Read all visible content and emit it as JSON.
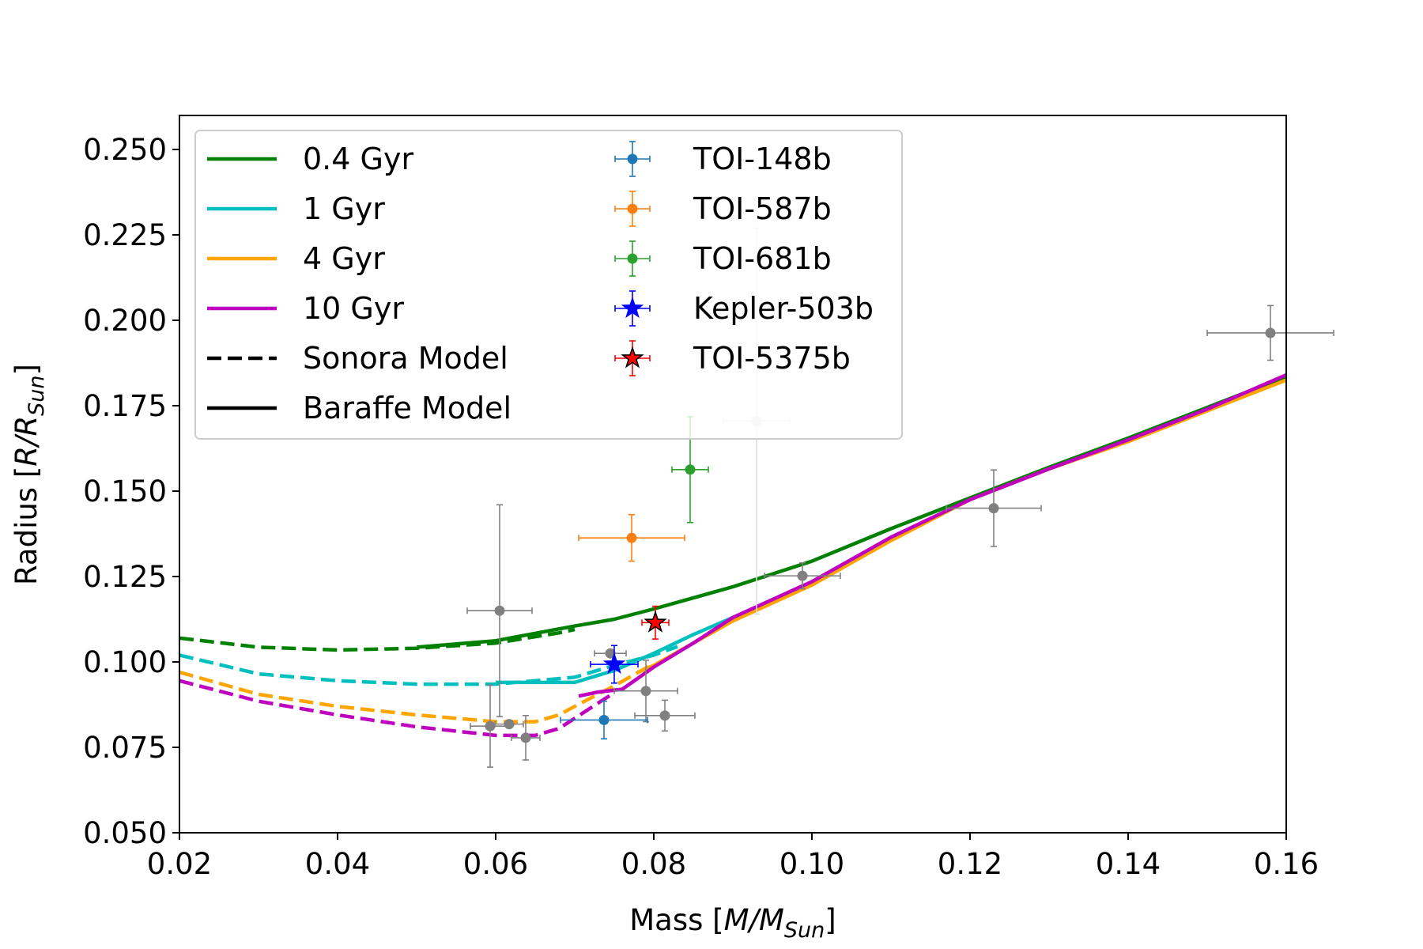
{
  "chart_data": {
    "type": "scatter",
    "title": "",
    "xlabel": {
      "pre": "Mass [",
      "var": "M/M",
      "sub": "Sun",
      "post": "]"
    },
    "ylabel": {
      "pre": "Radius [",
      "var": "R/R",
      "sub": "Sun",
      "post": "]"
    },
    "xlim": [
      0.02,
      0.16
    ],
    "ylim": [
      0.05,
      0.26
    ],
    "xticks": [
      0.02,
      0.04,
      0.06,
      0.08,
      0.1,
      0.12,
      0.14,
      0.16
    ],
    "xtick_labels": [
      "0.02",
      "0.04",
      "0.06",
      "0.08",
      "0.10",
      "0.12",
      "0.14",
      "0.16"
    ],
    "yticks": [
      0.05,
      0.075,
      0.1,
      0.125,
      0.15,
      0.175,
      0.2,
      0.225,
      0.25
    ],
    "ytick_labels": [
      "0.050",
      "0.075",
      "0.100",
      "0.125",
      "0.150",
      "0.175",
      "0.200",
      "0.225",
      "0.250"
    ],
    "grid": false,
    "legend_position": "upper-left",
    "series": [
      {
        "name": "0.4 Gyr",
        "color": "#008000",
        "model": "Sonora",
        "points": [
          [
            0.02,
            0.107
          ],
          [
            0.03,
            0.1043
          ],
          [
            0.04,
            0.1035
          ],
          [
            0.05,
            0.104
          ],
          [
            0.06,
            0.1055
          ],
          [
            0.068,
            0.1085
          ],
          [
            0.07,
            0.1095
          ]
        ]
      },
      {
        "name": "0.4 Gyr",
        "color": "#008000",
        "model": "Baraffe",
        "points": [
          [
            0.05,
            0.1043
          ],
          [
            0.06,
            0.1062
          ],
          [
            0.07,
            0.1105
          ],
          [
            0.075,
            0.1125
          ],
          [
            0.08,
            0.1155
          ],
          [
            0.09,
            0.122
          ],
          [
            0.1,
            0.1295
          ],
          [
            0.11,
            0.139
          ],
          [
            0.12,
            0.148
          ],
          [
            0.13,
            0.157
          ],
          [
            0.14,
            0.1655
          ],
          [
            0.15,
            0.1745
          ],
          [
            0.16,
            0.1835
          ]
        ]
      },
      {
        "name": "1 Gyr",
        "color": "#00BFBF",
        "model": "Sonora",
        "points": [
          [
            0.02,
            0.102
          ],
          [
            0.03,
            0.0965
          ],
          [
            0.04,
            0.0945
          ],
          [
            0.05,
            0.0935
          ],
          [
            0.06,
            0.0935
          ],
          [
            0.07,
            0.0955
          ],
          [
            0.075,
            0.099
          ],
          [
            0.08,
            0.102
          ],
          [
            0.083,
            0.1045
          ]
        ]
      },
      {
        "name": "1 Gyr",
        "color": "#00BFBF",
        "model": "Baraffe",
        "points": [
          [
            0.06,
            0.094
          ],
          [
            0.065,
            0.094
          ],
          [
            0.07,
            0.094
          ],
          [
            0.075,
            0.0975
          ],
          [
            0.08,
            0.1025
          ],
          [
            0.085,
            0.108
          ],
          [
            0.09,
            0.113
          ]
        ]
      },
      {
        "name": "4 Gyr",
        "color": "#FFA500",
        "model": "Sonora",
        "points": [
          [
            0.02,
            0.097
          ],
          [
            0.03,
            0.0905
          ],
          [
            0.04,
            0.087
          ],
          [
            0.05,
            0.0845
          ],
          [
            0.06,
            0.0825
          ],
          [
            0.065,
            0.0825
          ],
          [
            0.068,
            0.0845
          ],
          [
            0.07,
            0.087
          ],
          [
            0.075,
            0.093
          ],
          [
            0.08,
            0.0995
          ]
        ]
      },
      {
        "name": "4 Gyr",
        "color": "#FFA500",
        "model": "Baraffe",
        "points": [
          [
            0.078,
            0.097
          ],
          [
            0.08,
            0.099
          ],
          [
            0.09,
            0.112
          ],
          [
            0.1,
            0.1225
          ],
          [
            0.11,
            0.1355
          ],
          [
            0.12,
            0.1475
          ],
          [
            0.13,
            0.1565
          ],
          [
            0.14,
            0.1645
          ],
          [
            0.15,
            0.1735
          ],
          [
            0.16,
            0.1825
          ]
        ]
      },
      {
        "name": "10 Gyr",
        "color": "#BF00BF",
        "model": "Sonora",
        "points": [
          [
            0.02,
            0.0945
          ],
          [
            0.03,
            0.0885
          ],
          [
            0.04,
            0.0845
          ],
          [
            0.05,
            0.081
          ],
          [
            0.06,
            0.0785
          ],
          [
            0.065,
            0.0785
          ],
          [
            0.068,
            0.0805
          ],
          [
            0.07,
            0.0835
          ],
          [
            0.072,
            0.0865
          ],
          [
            0.075,
            0.091
          ]
        ]
      },
      {
        "name": "10 Gyr",
        "color": "#BF00BF",
        "model": "Baraffe",
        "points": [
          [
            0.0705,
            0.09
          ],
          [
            0.073,
            0.0912
          ],
          [
            0.076,
            0.092
          ],
          [
            0.08,
            0.0985
          ],
          [
            0.085,
            0.1055
          ],
          [
            0.09,
            0.113
          ],
          [
            0.1,
            0.1235
          ],
          [
            0.11,
            0.1365
          ],
          [
            0.12,
            0.1475
          ],
          [
            0.13,
            0.1565
          ],
          [
            0.14,
            0.165
          ],
          [
            0.15,
            0.174
          ],
          [
            0.16,
            0.184
          ]
        ]
      }
    ],
    "labeled_points": [
      {
        "name": "TOI-148b",
        "color": "#1F77B4",
        "marker": "dot",
        "x": 0.0737,
        "y": 0.083,
        "xerr": 0.0055,
        "yerr": 0.0055
      },
      {
        "name": "TOI-587b",
        "color": "#FF7F0E",
        "marker": "dot",
        "x": 0.0772,
        "y": 0.1363,
        "xerr": 0.0067,
        "yerr": 0.0068
      },
      {
        "name": "TOI-681b",
        "color": "#2CA02C",
        "marker": "dot",
        "x": 0.0846,
        "y": 0.1563,
        "xerr": 0.0023,
        "yerr": 0.0155
      },
      {
        "name": "Kepler-503b",
        "color": "#0000FF",
        "marker": "star",
        "x": 0.075,
        "y": 0.0993,
        "xerr": 0.003,
        "yerr": 0.0055
      },
      {
        "name": "TOI-5375b",
        "color": "#FF0000",
        "marker": "star-outlined",
        "x": 0.0802,
        "y": 0.1115,
        "xerr": 0.0017,
        "yerr": 0.0048
      }
    ],
    "other_points": [
      {
        "x": 0.0605,
        "y": 0.115,
        "xerr": 0.0041,
        "yerr": 0.031,
        "color": "#808080"
      },
      {
        "x": 0.0593,
        "y": 0.0812,
        "xerr": 0.0025,
        "yerr": 0.012,
        "color": "#808080"
      },
      {
        "x": 0.0617,
        "y": 0.0818,
        "xerr": 0.0018,
        "yerr": 0.0,
        "color": "#808080"
      },
      {
        "x": 0.0638,
        "y": 0.0778,
        "xerr": 0.0018,
        "yerr": 0.0065,
        "color": "#808080"
      },
      {
        "x": 0.0745,
        "y": 0.1025,
        "xerr": 0.002,
        "yerr": 0.0,
        "color": "#808080"
      },
      {
        "x": 0.079,
        "y": 0.0915,
        "xerr": 0.004,
        "yerr": 0.009,
        "color": "#808080"
      },
      {
        "x": 0.0814,
        "y": 0.0843,
        "xerr": 0.0038,
        "yerr": 0.0045,
        "color": "#808080"
      },
      {
        "x": 0.093,
        "y": 0.1705,
        "xerr": 0.0042,
        "yerr": 0.0565,
        "color": "#DDDDDD"
      },
      {
        "x": 0.0988,
        "y": 0.1252,
        "xerr": 0.0048,
        "yerr": 0.0038,
        "color": "#808080"
      },
      {
        "x": 0.123,
        "y": 0.145,
        "xerr": 0.006,
        "yerr": 0.0112,
        "color": "#808080"
      },
      {
        "x": 0.158,
        "y": 0.1963,
        "xerr": 0.008,
        "yerr": 0.008,
        "color": "#808080"
      }
    ],
    "legend": {
      "left": [
        {
          "label": "0.4 Gyr",
          "kind": "line",
          "color": "#008000"
        },
        {
          "label": "1 Gyr",
          "kind": "line",
          "color": "#00BFBF"
        },
        {
          "label": "4 Gyr",
          "kind": "line",
          "color": "#FFA500"
        },
        {
          "label": "10 Gyr",
          "kind": "line",
          "color": "#BF00BF"
        },
        {
          "label": "Sonora Model",
          "kind": "dashed",
          "color": "#000000"
        },
        {
          "label": "Baraffe Model",
          "kind": "line",
          "color": "#000000"
        }
      ],
      "right": [
        {
          "label": "TOI-148b",
          "kind": "dot",
          "color": "#1F77B4"
        },
        {
          "label": "TOI-587b",
          "kind": "dot",
          "color": "#FF7F0E"
        },
        {
          "label": "TOI-681b",
          "kind": "dot",
          "color": "#2CA02C"
        },
        {
          "label": "Kepler-503b",
          "kind": "star",
          "color": "#0000FF"
        },
        {
          "label": "TOI-5375b",
          "kind": "star-outlined",
          "color": "#FF0000"
        }
      ]
    }
  }
}
